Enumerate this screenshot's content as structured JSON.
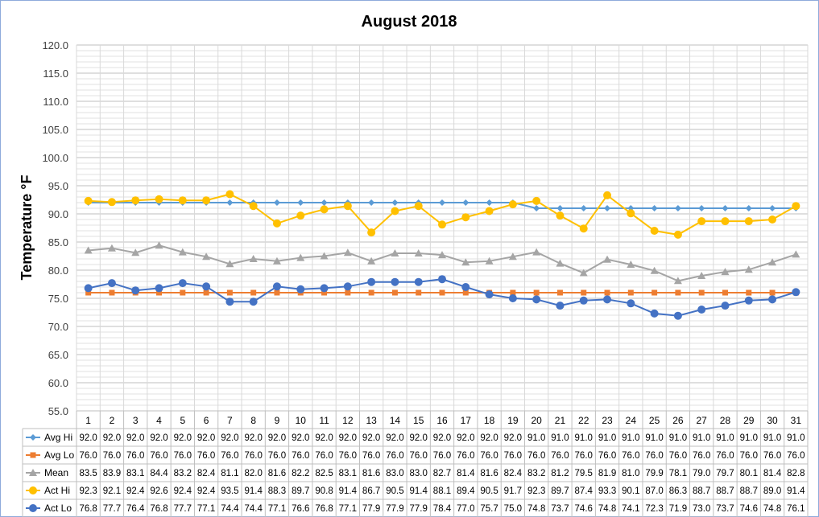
{
  "chart_data": {
    "type": "line",
    "title": "August 2018",
    "xlabel": "",
    "ylabel": "Temperature °F",
    "ylim": [
      55.0,
      120.0
    ],
    "ytick_step": 5,
    "grid": true,
    "legend": "data-table-left",
    "categories": [
      "1",
      "2",
      "3",
      "4",
      "5",
      "6",
      "7",
      "8",
      "9",
      "10",
      "11",
      "12",
      "13",
      "14",
      "15",
      "16",
      "17",
      "18",
      "19",
      "20",
      "21",
      "22",
      "23",
      "24",
      "25",
      "26",
      "27",
      "28",
      "29",
      "30",
      "31"
    ],
    "series": [
      {
        "name": "Avg Hi",
        "color": "#5b9bd5",
        "marker": "diamond",
        "values": [
          92.0,
          92.0,
          92.0,
          92.0,
          92.0,
          92.0,
          92.0,
          92.0,
          92.0,
          92.0,
          92.0,
          92.0,
          92.0,
          92.0,
          92.0,
          92.0,
          92.0,
          92.0,
          92.0,
          91.0,
          91.0,
          91.0,
          91.0,
          91.0,
          91.0,
          91.0,
          91.0,
          91.0,
          91.0,
          91.0,
          91.0
        ]
      },
      {
        "name": "Avg Lo",
        "color": "#ed7d31",
        "marker": "square",
        "values": [
          76.0,
          76.0,
          76.0,
          76.0,
          76.0,
          76.0,
          76.0,
          76.0,
          76.0,
          76.0,
          76.0,
          76.0,
          76.0,
          76.0,
          76.0,
          76.0,
          76.0,
          76.0,
          76.0,
          76.0,
          76.0,
          76.0,
          76.0,
          76.0,
          76.0,
          76.0,
          76.0,
          76.0,
          76.0,
          76.0,
          76.0
        ]
      },
      {
        "name": "Mean",
        "color": "#a5a5a5",
        "marker": "triangle",
        "values": [
          83.5,
          83.9,
          83.1,
          84.4,
          83.2,
          82.4,
          81.1,
          82.0,
          81.6,
          82.2,
          82.5,
          83.1,
          81.6,
          83.0,
          83.0,
          82.7,
          81.4,
          81.6,
          82.4,
          83.2,
          81.2,
          79.5,
          81.9,
          81.0,
          79.9,
          78.1,
          79.0,
          79.7,
          80.1,
          81.4,
          82.8
        ]
      },
      {
        "name": "Act Hi",
        "color": "#ffc000",
        "marker": "circle",
        "values": [
          92.3,
          92.1,
          92.4,
          92.6,
          92.4,
          92.4,
          93.5,
          91.4,
          88.3,
          89.7,
          90.8,
          91.4,
          86.7,
          90.5,
          91.4,
          88.1,
          89.4,
          90.5,
          91.7,
          92.3,
          89.7,
          87.4,
          93.3,
          90.1,
          87.0,
          86.3,
          88.7,
          88.7,
          88.7,
          89.0,
          91.4
        ]
      },
      {
        "name": "Act Lo",
        "color": "#4472c4",
        "marker": "circle",
        "values": [
          76.8,
          77.7,
          76.4,
          76.8,
          77.7,
          77.1,
          74.4,
          74.4,
          77.1,
          76.6,
          76.8,
          77.1,
          77.9,
          77.9,
          77.9,
          78.4,
          77.0,
          75.7,
          75.0,
          74.8,
          73.7,
          74.6,
          74.8,
          74.1,
          72.3,
          71.9,
          73.0,
          73.7,
          74.6,
          74.8,
          76.1
        ]
      }
    ]
  }
}
